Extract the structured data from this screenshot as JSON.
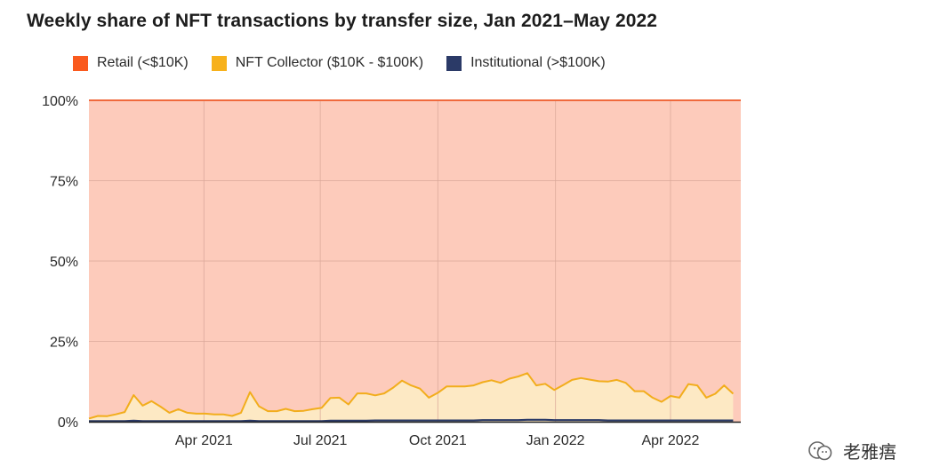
{
  "title": "Weekly share of NFT transactions by transfer size, Jan 2021–May 2022",
  "legend": [
    {
      "label": "Retail (<$10K)",
      "color": "#fa5a1e"
    },
    {
      "label": "NFT Collector ($10K - $100K)",
      "color": "#f7b11b"
    },
    {
      "label": "Institutional (>$100K)",
      "color": "#2b3a67"
    }
  ],
  "watermark": {
    "text": "老雅痦",
    "icon": "wechat-official-account-icon"
  },
  "colors": {
    "retail_fill": "#fdcbbb",
    "retail_line": "#f06a3d",
    "collector_fill": "#fde9c4",
    "collector_line": "#f2ad1c",
    "institutional_line": "#2b3a67",
    "grid": "#d9a89a"
  },
  "chart_data": {
    "type": "area",
    "stacked": true,
    "title": "Weekly share of NFT transactions by transfer size, Jan 2021–May 2022",
    "xlabel": "",
    "ylabel": "",
    "ylim": [
      0,
      100
    ],
    "y_ticks": [
      {
        "value": 0,
        "label": "0%"
      },
      {
        "value": 25,
        "label": "25%"
      },
      {
        "value": 50,
        "label": "50%"
      },
      {
        "value": 75,
        "label": "75%"
      },
      {
        "value": 100,
        "label": "100%"
      }
    ],
    "x_ticks": [
      {
        "date": "2021-04-01",
        "label": "Apr 2021"
      },
      {
        "date": "2021-07-01",
        "label": "Jul 2021"
      },
      {
        "date": "2021-10-01",
        "label": "Oct 2021"
      },
      {
        "date": "2022-01-01",
        "label": "Jan 2022"
      },
      {
        "date": "2022-04-01",
        "label": "Apr 2022"
      }
    ],
    "xlim": [
      "2021-01-01",
      "2022-05-26"
    ],
    "grid": true,
    "legend_position": "top",
    "x": [
      "2021-01-01",
      "2021-01-08",
      "2021-01-15",
      "2021-01-22",
      "2021-01-29",
      "2021-02-05",
      "2021-02-12",
      "2021-02-19",
      "2021-02-26",
      "2021-03-05",
      "2021-03-12",
      "2021-03-19",
      "2021-03-26",
      "2021-04-02",
      "2021-04-09",
      "2021-04-16",
      "2021-04-23",
      "2021-04-30",
      "2021-05-07",
      "2021-05-14",
      "2021-05-21",
      "2021-05-28",
      "2021-06-04",
      "2021-06-11",
      "2021-06-18",
      "2021-06-25",
      "2021-07-02",
      "2021-07-09",
      "2021-07-16",
      "2021-07-23",
      "2021-07-30",
      "2021-08-06",
      "2021-08-13",
      "2021-08-20",
      "2021-08-27",
      "2021-09-03",
      "2021-09-10",
      "2021-09-17",
      "2021-09-24",
      "2021-10-01",
      "2021-10-08",
      "2021-10-15",
      "2021-10-22",
      "2021-10-29",
      "2021-11-05",
      "2021-11-12",
      "2021-11-19",
      "2021-11-26",
      "2021-12-03",
      "2021-12-10",
      "2021-12-17",
      "2021-12-24",
      "2021-12-31",
      "2022-01-07",
      "2022-01-14",
      "2022-01-21",
      "2022-01-28",
      "2022-02-04",
      "2022-02-11",
      "2022-02-18",
      "2022-02-25",
      "2022-03-04",
      "2022-03-11",
      "2022-03-18",
      "2022-03-25",
      "2022-04-01",
      "2022-04-08",
      "2022-04-15",
      "2022-04-22",
      "2022-04-29",
      "2022-05-06",
      "2022-05-13",
      "2022-05-20"
    ],
    "series": [
      {
        "name": "Institutional (>$100K)",
        "values": [
          0.2,
          0.2,
          0.2,
          0.2,
          0.2,
          0.3,
          0.2,
          0.2,
          0.2,
          0.2,
          0.2,
          0.2,
          0.2,
          0.2,
          0.2,
          0.2,
          0.2,
          0.2,
          0.3,
          0.2,
          0.2,
          0.2,
          0.2,
          0.2,
          0.2,
          0.2,
          0.2,
          0.3,
          0.3,
          0.3,
          0.3,
          0.3,
          0.4,
          0.4,
          0.4,
          0.4,
          0.4,
          0.4,
          0.4,
          0.4,
          0.4,
          0.4,
          0.4,
          0.4,
          0.5,
          0.5,
          0.5,
          0.5,
          0.5,
          0.6,
          0.6,
          0.6,
          0.5,
          0.5,
          0.5,
          0.5,
          0.5,
          0.5,
          0.4,
          0.4,
          0.4,
          0.4,
          0.4,
          0.4,
          0.4,
          0.4,
          0.4,
          0.4,
          0.4,
          0.4,
          0.4,
          0.4,
          0.4
        ]
      },
      {
        "name": "NFT Collector ($10K - $100K)",
        "values": [
          0.8,
          1.6,
          1.5,
          2.1,
          2.8,
          8.0,
          4.8,
          6.2,
          4.5,
          2.6,
          3.7,
          2.6,
          2.3,
          2.3,
          2.1,
          2.1,
          1.6,
          2.6,
          8.9,
          4.6,
          3.1,
          3.1,
          3.8,
          3.1,
          3.2,
          3.7,
          4.1,
          7.1,
          7.2,
          5.1,
          8.5,
          8.5,
          7.8,
          8.4,
          10.2,
          12.4,
          10.9,
          9.9,
          7.1,
          8.6,
          10.6,
          10.6,
          10.6,
          10.9,
          11.8,
          12.4,
          11.6,
          12.9,
          13.6,
          14.5,
          10.7,
          11.2,
          9.4,
          10.9,
          12.5,
          13.1,
          12.6,
          12.1,
          12.1,
          12.6,
          11.7,
          9.1,
          9.1,
          7.1,
          5.8,
          7.6,
          7.1,
          11.3,
          10.9,
          7.1,
          8.3,
          10.9,
          8.3
        ]
      },
      {
        "name": "Retail (<$10K)",
        "values": [
          99.0,
          98.2,
          98.3,
          97.7,
          97.0,
          91.7,
          95.0,
          93.6,
          95.3,
          97.2,
          96.1,
          97.2,
          97.5,
          97.5,
          97.7,
          97.7,
          98.2,
          97.2,
          90.8,
          95.2,
          96.7,
          96.7,
          96.0,
          96.7,
          96.6,
          96.1,
          95.7,
          92.6,
          92.5,
          94.6,
          91.2,
          91.2,
          91.8,
          91.2,
          89.4,
          87.2,
          88.7,
          89.7,
          92.5,
          91.0,
          89.0,
          89.0,
          89.0,
          88.7,
          87.7,
          87.1,
          87.9,
          86.6,
          85.9,
          84.9,
          88.7,
          88.2,
          90.1,
          88.6,
          87.0,
          86.4,
          86.9,
          87.4,
          87.5,
          87.0,
          87.9,
          90.5,
          90.5,
          92.5,
          93.8,
          92.0,
          92.5,
          88.3,
          88.7,
          92.5,
          91.3,
          88.7,
          91.3
        ]
      }
    ]
  }
}
